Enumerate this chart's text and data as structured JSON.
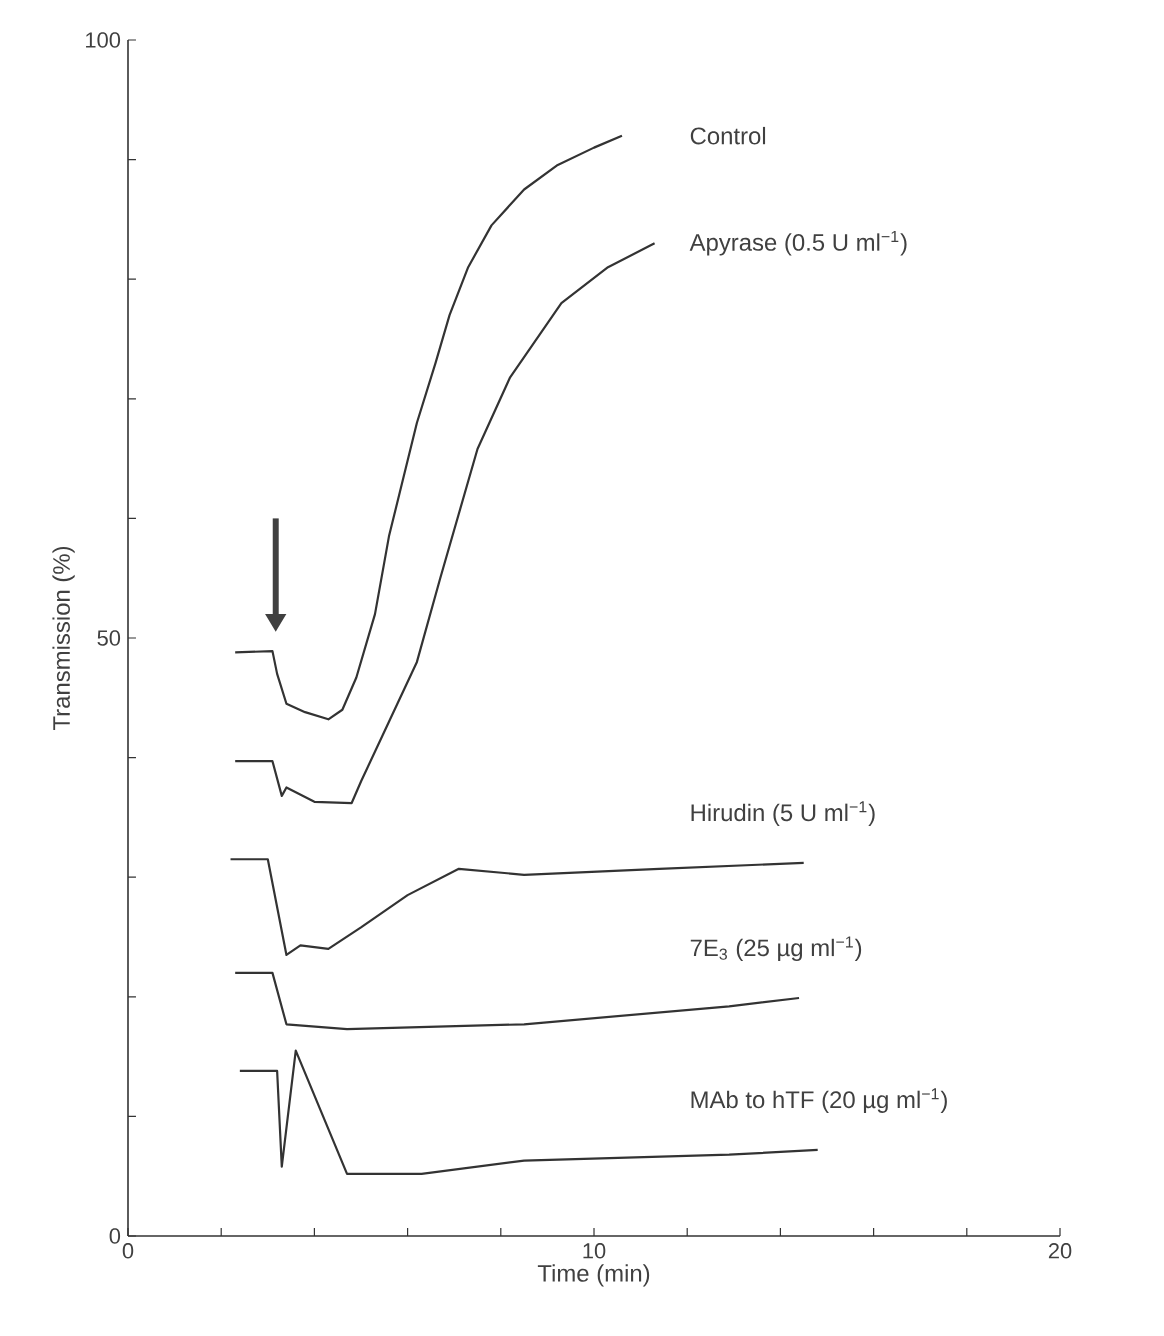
{
  "chart_data": {
    "type": "line",
    "xlabel": "Time (min)",
    "ylabel": "Transmission (%)",
    "xlim": [
      0,
      20
    ],
    "ylim": [
      0,
      100
    ],
    "xticks": [
      0,
      {
        "value": 2,
        "label": null
      },
      {
        "value": 4,
        "label": null
      },
      {
        "value": 6,
        "label": null
      },
      {
        "value": 8,
        "label": null
      },
      10,
      {
        "value": 12,
        "label": null
      },
      {
        "value": 14,
        "label": null
      },
      {
        "value": 16,
        "label": null
      },
      {
        "value": 18,
        "label": null
      },
      20
    ],
    "yticks": [
      0,
      {
        "value": 10,
        "label": null
      },
      {
        "value": 20,
        "label": null
      },
      {
        "value": 30,
        "label": null
      },
      {
        "value": 40,
        "label": null
      },
      50,
      {
        "value": 60,
        "label": null
      },
      {
        "value": 70,
        "label": null
      },
      {
        "value": 80,
        "label": null
      },
      {
        "value": 90,
        "label": null
      },
      100
    ],
    "marker": "none",
    "line_style": "solid",
    "series": [
      {
        "name": "Control",
        "color": "#333333",
        "x": [
          2.3,
          3.1,
          3.2,
          3.4,
          3.8,
          4.3,
          4.6,
          4.9,
          5.3,
          5.6,
          6.2,
          6.6,
          6.9,
          7.3,
          7.8,
          8.5,
          9.2,
          10,
          10.6
        ],
        "values": [
          48.8,
          48.9,
          47,
          44.5,
          43.8,
          43.2,
          44,
          46.7,
          52,
          58.5,
          68,
          73,
          77,
          81,
          84.5,
          87.5,
          89.5,
          91,
          92
        ]
      },
      {
        "name": "Apyrase (0.5 U ml$^{−1}$)",
        "color": "#333333",
        "x": [
          2.3,
          3.1,
          3.3,
          3.4,
          4.0,
          4.8,
          5.0,
          5.6,
          6.2,
          6.7,
          7.5,
          8.2,
          9.3,
          10.3,
          11.3
        ],
        "values": [
          39.7,
          39.7,
          36.8,
          37.5,
          36.3,
          36.2,
          38,
          43,
          48,
          55,
          65.8,
          71.8,
          78,
          81,
          83
        ]
      },
      {
        "name": "Hirudin (5 U ml$^{−1}$)",
        "color": "#333333",
        "x": [
          2.2,
          3.0,
          3.4,
          3.7,
          4.3,
          5.0,
          6.0,
          7.1,
          8.5,
          11.4,
          14.5
        ],
        "values": [
          31.5,
          31.5,
          23.5,
          24.3,
          24,
          25.8,
          28.5,
          30.7,
          30.2,
          30.7,
          31.2
        ]
      },
      {
        "name": "7E$_{3}$ (25 µg ml$^{−1}$)",
        "color": "#333333",
        "x": [
          2.3,
          3.1,
          3.4,
          4.7,
          8.5,
          12.9,
          14.4
        ],
        "values": [
          22,
          22,
          17.7,
          17.3,
          17.7,
          19.2,
          19.9
        ]
      },
      {
        "name": "MAb to hTF (20 µg ml$^{−1}$)",
        "color": "#333333",
        "x": [
          2.4,
          3.2,
          3.3,
          3.6,
          4.7,
          6.3,
          8.5,
          12.9,
          14.8
        ],
        "values": [
          13.8,
          13.8,
          5.8,
          15.5,
          5.2,
          5.2,
          6.3,
          6.8,
          7.2
        ]
      }
    ]
  }
}
